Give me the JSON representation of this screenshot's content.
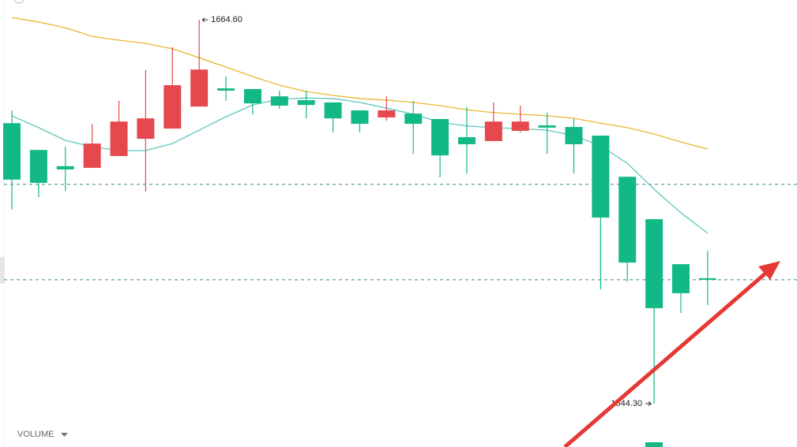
{
  "chart_data": {
    "type": "candlestick",
    "open": [
      1632.2,
      1623.8,
      1618.7,
      1618.2,
      1621.9,
      1627.3,
      1630.5,
      1637.4,
      1643.1,
      1642.9,
      1640.6,
      1639.4,
      1638.7,
      1636.2,
      1634.0,
      1635.2,
      1633.5,
      1627.8,
      1626.6,
      1629.8,
      1631.5,
      1631.0,
      1628.3,
      1615.4,
      1602.1,
      1588.0,
      1583.6
    ],
    "high": [
      1636.2,
      1623.8,
      1624.8,
      1632.0,
      1639.2,
      1648.8,
      1656.0,
      1664.6,
      1646.8,
      1642.9,
      1642.4,
      1642.4,
      1638.7,
      1636.2,
      1640.6,
      1639.2,
      1633.5,
      1637.2,
      1638.7,
      1637.7,
      1635.5,
      1633.7,
      1628.3,
      1615.4,
      1602.1,
      1588.0,
      1592.2
    ],
    "low": [
      1605.1,
      1609.0,
      1611.0,
      1618.2,
      1621.9,
      1610.8,
      1630.5,
      1637.4,
      1639.2,
      1635.0,
      1636.7,
      1633.7,
      1629.3,
      1629.3,
      1633.0,
      1622.6,
      1615.2,
      1616.4,
      1626.6,
      1629.3,
      1622.6,
      1616.4,
      1580.1,
      1582.6,
      1544.3,
      1572.7,
      1575.2
    ],
    "close": [
      1614.5,
      1613.5,
      1617.7,
      1625.8,
      1632.7,
      1633.7,
      1644.1,
      1649.0,
      1642.4,
      1638.4,
      1637.7,
      1637.9,
      1633.7,
      1632.0,
      1636.2,
      1632.0,
      1622.1,
      1625.6,
      1632.7,
      1632.7,
      1630.8,
      1625.6,
      1602.6,
      1588.5,
      1574.2,
      1578.9,
      1583.1
    ],
    "up_color": "#e5484d",
    "down_color": "#12b886",
    "lines": [
      {
        "color": "#5cc8bd",
        "values": [
          1634.5,
          1630.8,
          1626.8,
          1624.8,
          1623.6,
          1623.6,
          1625.8,
          1630.0,
          1634.2,
          1637.9,
          1639.7,
          1640.1,
          1639.9,
          1638.7,
          1636.9,
          1635.0,
          1632.5,
          1631.3,
          1630.8,
          1630.5,
          1630.0,
          1628.3,
          1625.1,
          1619.6,
          1611.5,
          1604.1,
          1597.7
        ]
      },
      {
        "color": "#e8b631",
        "values": [
          1665.3,
          1663.9,
          1662.1,
          1659.4,
          1658.2,
          1657.2,
          1655.5,
          1652.7,
          1649.8,
          1646.8,
          1644.1,
          1642.1,
          1640.9,
          1639.9,
          1639.4,
          1638.7,
          1637.7,
          1636.4,
          1635.5,
          1635.0,
          1634.5,
          1633.7,
          1632.2,
          1630.8,
          1628.8,
          1626.3,
          1624.1
        ]
      }
    ],
    "price_lines": [
      1613.0,
      1583.1
    ],
    "high_label": {
      "value": 1664.6,
      "label": "1664.60"
    },
    "low_label": {
      "value": 1544.3,
      "label": "1544.30"
    },
    "ylim": [
      1530.7,
      1670.8
    ],
    "volume_label": "VOLUME"
  }
}
